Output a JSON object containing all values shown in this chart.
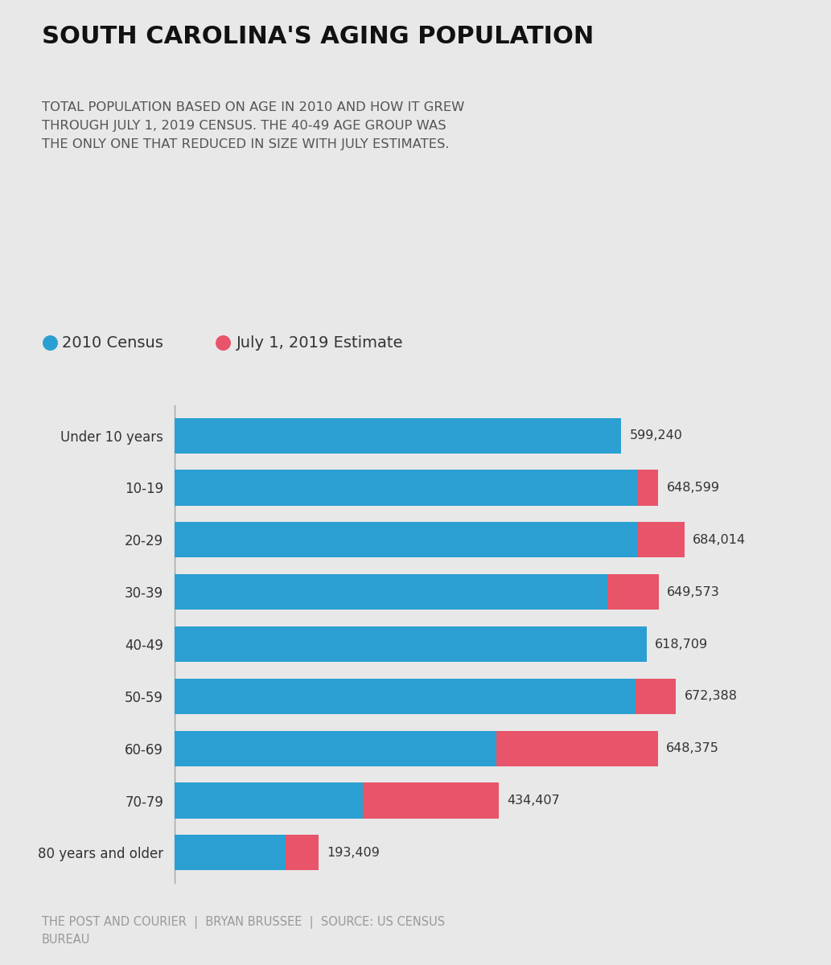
{
  "title": "SOUTH CAROLINA'S AGING POPULATION",
  "subtitle_line1": "TOTAL POPULATION BASED ON AGE IN 2010 AND HOW IT GREW",
  "subtitle_line2": "THROUGH JULY 1, 2019 CENSUS. THE 40-49 AGE GROUP WAS",
  "subtitle_line3": "THE ONLY ONE THAT REDUCED IN SIZE WITH JULY ESTIMATES.",
  "legend_2010": "2010 Census",
  "legend_2019": "July 1, 2019 Estimate",
  "footer_line1": "THE POST AND COURIER  |  BRYAN BRUSSEE  |  SOURCE: US CENSUS",
  "footer_line2": "BUREAU",
  "categories": [
    "Under 10 years",
    "10-19",
    "20-29",
    "30-39",
    "40-49",
    "50-59",
    "60-69",
    "70-79",
    "80 years and older"
  ],
  "census_2010": [
    599240,
    621000,
    620000,
    580000,
    633000,
    618000,
    432000,
    253000,
    149000
  ],
  "census_2019": [
    599240,
    648599,
    684014,
    649573,
    618709,
    672388,
    648375,
    434407,
    193409
  ],
  "blue_color": "#2B9FD1",
  "red_color": "#E8546A",
  "background_color": "#E8E8E8",
  "title_color": "#111111",
  "subtitle_color": "#555555",
  "label_color": "#333333",
  "footer_color": "#999999",
  "bar_height": 0.68,
  "xlim_max": 780000
}
